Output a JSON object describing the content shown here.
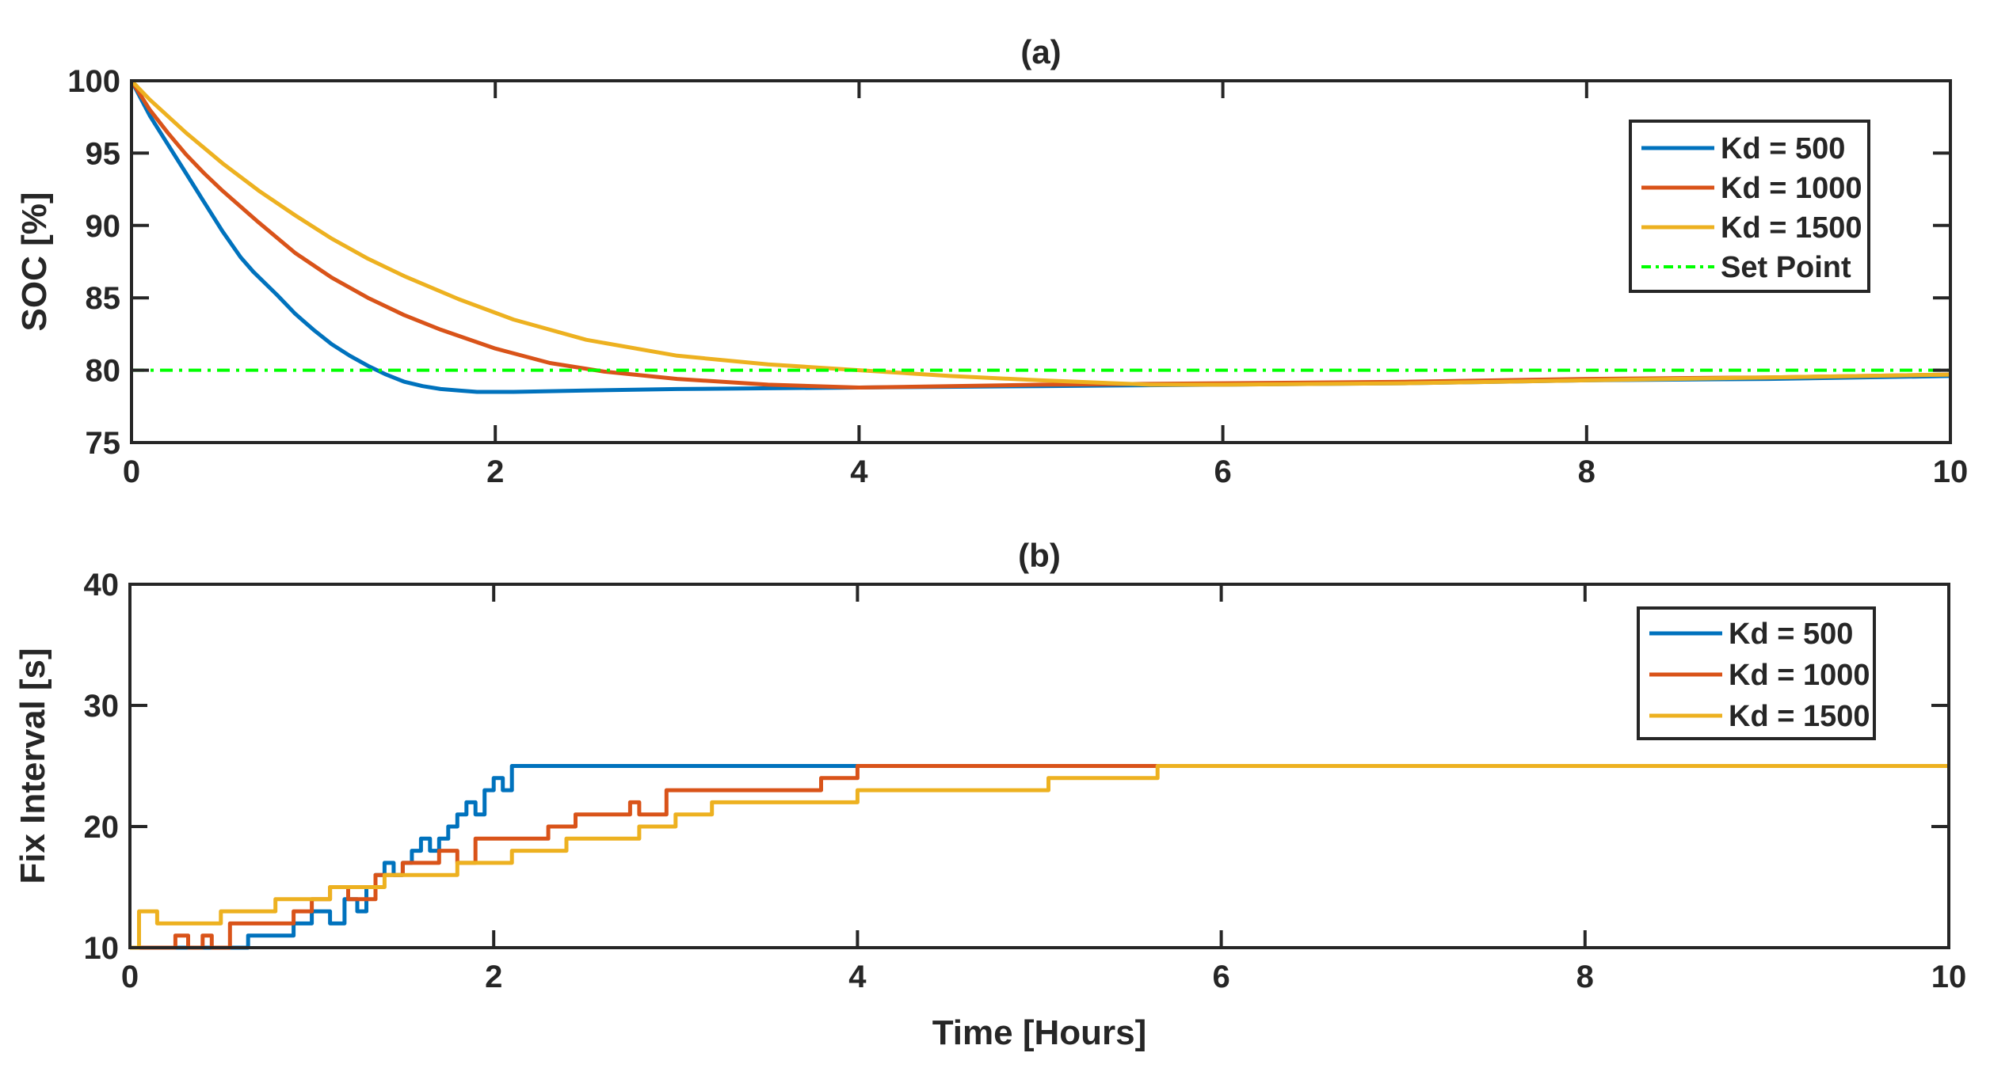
{
  "chart_data": [
    {
      "type": "line",
      "title": "(a)",
      "xlabel": "",
      "ylabel": "SOC [%]",
      "xlim": [
        0,
        10
      ],
      "ylim": [
        75,
        100
      ],
      "xticks": [
        "0",
        "2",
        "4",
        "6",
        "8",
        "10"
      ],
      "yticks": [
        "75",
        "80",
        "85",
        "90",
        "95",
        "100"
      ],
      "legend_position": "top-right",
      "series": [
        {
          "name": "Kd = 500",
          "color": "#0072BD",
          "style": "solid",
          "x": [
            0,
            0.1,
            0.2,
            0.3,
            0.4,
            0.5,
            0.6,
            0.67,
            0.8,
            0.9,
            1.0,
            1.1,
            1.2,
            1.3,
            1.4,
            1.5,
            1.6,
            1.7,
            1.8,
            1.9,
            2.0,
            2.1,
            2.5,
            3.0,
            4.0,
            5.0,
            6.0,
            7.0,
            8.0,
            9.0,
            10.0
          ],
          "values": [
            100,
            97.6,
            95.6,
            93.6,
            91.6,
            89.6,
            87.8,
            86.8,
            85.2,
            83.9,
            82.8,
            81.8,
            81.0,
            80.3,
            79.7,
            79.2,
            78.9,
            78.7,
            78.6,
            78.5,
            78.5,
            78.5,
            78.6,
            78.7,
            78.8,
            78.9,
            79.0,
            79.1,
            79.3,
            79.4,
            79.6
          ]
        },
        {
          "name": "Kd = 1000",
          "color": "#D95319",
          "style": "solid",
          "x": [
            0,
            0.1,
            0.2,
            0.3,
            0.4,
            0.5,
            0.7,
            0.9,
            1.1,
            1.3,
            1.5,
            1.7,
            2.0,
            2.3,
            2.6,
            3.0,
            3.5,
            4.0,
            5.0,
            6.0,
            7.0,
            8.0,
            9.0,
            10.0
          ],
          "values": [
            100,
            98.0,
            96.4,
            94.9,
            93.6,
            92.4,
            90.2,
            88.1,
            86.4,
            85.0,
            83.8,
            82.8,
            81.5,
            80.5,
            79.9,
            79.4,
            79.0,
            78.8,
            79.0,
            79.1,
            79.2,
            79.4,
            79.5,
            79.7
          ]
        },
        {
          "name": "Kd = 1500",
          "color": "#EDB120",
          "style": "solid",
          "x": [
            0,
            0.1,
            0.3,
            0.5,
            0.7,
            0.9,
            1.1,
            1.3,
            1.5,
            1.8,
            2.1,
            2.5,
            3.0,
            3.5,
            4.0,
            4.5,
            5.0,
            5.6,
            6.0,
            7.0,
            8.0,
            9.0,
            10.0
          ],
          "values": [
            100,
            98.7,
            96.4,
            94.3,
            92.4,
            90.7,
            89.1,
            87.7,
            86.5,
            84.9,
            83.5,
            82.1,
            81.0,
            80.4,
            80.0,
            79.6,
            79.3,
            79.0,
            79.0,
            79.1,
            79.3,
            79.5,
            79.7
          ]
        },
        {
          "name": "Set Point",
          "color": "#00FF00",
          "style": "dashdot",
          "x": [
            0,
            10
          ],
          "values": [
            80,
            80
          ]
        }
      ]
    },
    {
      "type": "line",
      "title": "(b)",
      "xlabel": "Time [Hours]",
      "ylabel": "Fix Interval [s]",
      "xlim": [
        0,
        10
      ],
      "ylim": [
        10,
        40
      ],
      "xticks": [
        "0",
        "2",
        "4",
        "6",
        "8",
        "10"
      ],
      "yticks": [
        "10",
        "20",
        "30",
        "40"
      ],
      "legend_position": "top-right",
      "series": [
        {
          "name": "Kd = 500",
          "color": "#0072BD",
          "style": "step",
          "x": [
            0,
            0.65,
            0.9,
            1.0,
            1.1,
            1.18,
            1.25,
            1.3,
            1.35,
            1.4,
            1.45,
            1.5,
            1.55,
            1.6,
            1.65,
            1.7,
            1.75,
            1.8,
            1.85,
            1.9,
            1.95,
            2.0,
            2.05,
            2.1,
            10.0
          ],
          "values": [
            10,
            11,
            12,
            13,
            12,
            14,
            13,
            15,
            16,
            17,
            16,
            17,
            18,
            19,
            18,
            19,
            20,
            21,
            22,
            21,
            23,
            24,
            23,
            25,
            25
          ]
        },
        {
          "name": "Kd = 1000",
          "color": "#D95319",
          "style": "step",
          "x": [
            0,
            0.25,
            0.32,
            0.4,
            0.45,
            0.55,
            0.9,
            1.0,
            1.1,
            1.2,
            1.35,
            1.5,
            1.7,
            1.8,
            1.9,
            2.0,
            2.3,
            2.35,
            2.45,
            2.5,
            2.75,
            2.8,
            2.95,
            3.0,
            3.2,
            3.6,
            3.8,
            3.9,
            4.0,
            10.0
          ],
          "values": [
            10,
            11,
            10,
            11,
            10,
            12,
            13,
            14,
            15,
            14,
            16,
            17,
            18,
            17,
            19,
            19,
            20,
            20,
            21,
            21,
            22,
            21,
            23,
            23,
            23,
            23,
            24,
            24,
            25,
            25
          ]
        },
        {
          "name": "Kd = 1500",
          "color": "#EDB120",
          "style": "step",
          "x": [
            0,
            0.05,
            0.15,
            0.2,
            0.5,
            0.8,
            1.1,
            1.4,
            1.8,
            2.1,
            2.4,
            2.6,
            2.8,
            3.0,
            3.2,
            3.9,
            4.0,
            5.0,
            5.05,
            5.6,
            5.65,
            10.0
          ],
          "values": [
            10,
            13,
            12,
            12,
            13,
            14,
            15,
            16,
            17,
            18,
            19,
            19,
            20,
            21,
            22,
            22,
            23,
            23,
            24,
            24,
            25,
            25
          ]
        }
      ]
    }
  ]
}
